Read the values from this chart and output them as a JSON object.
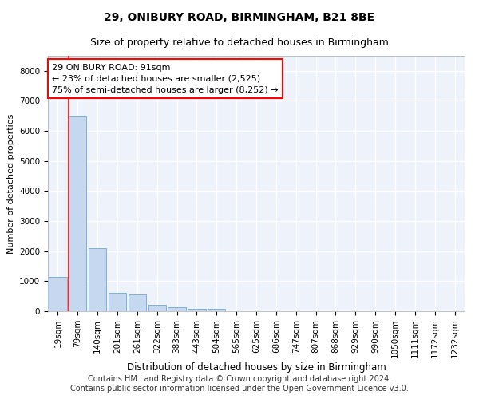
{
  "title1": "29, ONIBURY ROAD, BIRMINGHAM, B21 8BE",
  "title2": "Size of property relative to detached houses in Birmingham",
  "xlabel": "Distribution of detached houses by size in Birmingham",
  "ylabel": "Number of detached properties",
  "categories": [
    "19sqm",
    "79sqm",
    "140sqm",
    "201sqm",
    "261sqm",
    "322sqm",
    "383sqm",
    "443sqm",
    "504sqm",
    "565sqm",
    "625sqm",
    "686sqm",
    "747sqm",
    "807sqm",
    "868sqm",
    "929sqm",
    "990sqm",
    "1050sqm",
    "1111sqm",
    "1172sqm",
    "1232sqm"
  ],
  "values": [
    1150,
    6500,
    2100,
    600,
    550,
    200,
    120,
    70,
    70,
    0,
    0,
    0,
    0,
    0,
    0,
    0,
    0,
    0,
    0,
    0,
    0
  ],
  "bar_color": "#c5d8f0",
  "bar_edge_color": "#6fa8d4",
  "annotation_line1": "29 ONIBURY ROAD: 91sqm",
  "annotation_line2": "← 23% of detached houses are smaller (2,525)",
  "annotation_line3": "75% of semi-detached houses are larger (8,252) →",
  "annotation_box_color": "white",
  "annotation_box_edgecolor": "red",
  "vline_color": "red",
  "ylim": [
    0,
    8500
  ],
  "yticks": [
    0,
    1000,
    2000,
    3000,
    4000,
    5000,
    6000,
    7000,
    8000
  ],
  "footer1": "Contains HM Land Registry data © Crown copyright and database right 2024.",
  "footer2": "Contains public sector information licensed under the Open Government Licence v3.0.",
  "title1_fontsize": 10,
  "title2_fontsize": 9,
  "xlabel_fontsize": 8.5,
  "ylabel_fontsize": 8,
  "tick_fontsize": 7.5,
  "annotation_fontsize": 8,
  "footer_fontsize": 7,
  "background_color": "#eef2fb"
}
